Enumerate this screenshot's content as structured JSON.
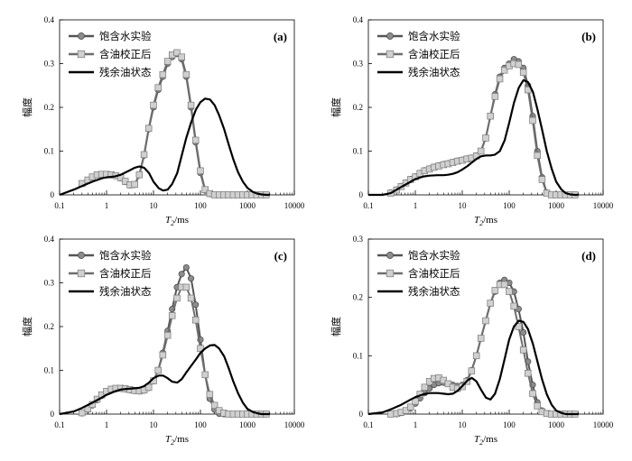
{
  "legend": {
    "sat": "饱含水实验",
    "corr": "含油校正后",
    "res": "残余油状态"
  },
  "axis": {
    "ylabel": "幅度",
    "xlabel_main": "T",
    "xlabel_sub": "2",
    "xlabel_unit": "/ms"
  },
  "colors": {
    "sat_line": "#555555",
    "sat_marker": "#8c8c8c",
    "corr_line": "#6e6e6e",
    "corr_marker": "#d0d0d0",
    "res_line": "#000000"
  },
  "chart_data": [
    {
      "panel": "(a)",
      "type": "line",
      "xscale": "log",
      "xlim": [
        0.1,
        10000
      ],
      "ylim": [
        0,
        0.4
      ],
      "yticks": [
        "0",
        "0.1",
        "0.2",
        "0.3",
        "0.4"
      ],
      "xticks": [
        "0.1",
        "1",
        "10",
        "100",
        "1000",
        "10000"
      ],
      "series": [
        {
          "name": "饱含水实验",
          "x": [
            0.3,
            0.4,
            0.5,
            0.63,
            0.79,
            1.0,
            1.26,
            1.58,
            2.0,
            2.5,
            3.16,
            3.98,
            5.0,
            6.3,
            7.9,
            10,
            12.6,
            15.8,
            20,
            25,
            31.6,
            39.8,
            50,
            63,
            79,
            100,
            126,
            158,
            200,
            251,
            316,
            398,
            501,
            631,
            794,
            1000,
            1259,
            1585,
            1995,
            2512
          ],
          "y": [
            0.025,
            0.033,
            0.04,
            0.045,
            0.046,
            0.046,
            0.045,
            0.043,
            0.038,
            0.03,
            0.022,
            0.023,
            0.045,
            0.09,
            0.15,
            0.2,
            0.24,
            0.27,
            0.3,
            0.315,
            0.322,
            0.31,
            0.27,
            0.2,
            0.12,
            0.05,
            0.01,
            0.002,
            0,
            0,
            0,
            0,
            0,
            0,
            0,
            0,
            0,
            0,
            0,
            0
          ]
        },
        {
          "name": "含油校正后",
          "x": [
            0.3,
            0.4,
            0.5,
            0.63,
            0.79,
            1.0,
            1.26,
            1.58,
            2.0,
            2.5,
            3.16,
            3.98,
            5.0,
            6.3,
            7.9,
            10,
            12.6,
            15.8,
            20,
            25,
            31.6,
            39.8,
            50,
            63,
            79,
            100,
            126,
            158,
            200,
            251,
            316,
            398,
            501,
            631,
            794,
            1000,
            1259,
            1585,
            1995,
            2512
          ],
          "y": [
            0.026,
            0.034,
            0.041,
            0.046,
            0.047,
            0.047,
            0.046,
            0.044,
            0.039,
            0.031,
            0.023,
            0.024,
            0.046,
            0.092,
            0.152,
            0.205,
            0.245,
            0.275,
            0.305,
            0.32,
            0.325,
            0.315,
            0.275,
            0.205,
            0.125,
            0.055,
            0.012,
            0.003,
            0,
            0,
            0,
            0,
            0,
            0,
            0,
            0,
            0,
            0,
            0,
            0
          ]
        },
        {
          "name": "残余油状态",
          "x": [
            0.1,
            0.2,
            0.3,
            0.5,
            0.8,
            1.0,
            1.5,
            2,
            3,
            4,
            5,
            6.3,
            8,
            10,
            13,
            16,
            20,
            25,
            32,
            40,
            50,
            63,
            80,
            100,
            126,
            160,
            200,
            250,
            320,
            400,
            500,
            630,
            800,
            1000,
            1300,
            1600,
            2000,
            2500,
            3000
          ],
          "y": [
            0,
            0.012,
            0.02,
            0.03,
            0.038,
            0.04,
            0.042,
            0.046,
            0.055,
            0.062,
            0.065,
            0.062,
            0.05,
            0.03,
            0.015,
            0.01,
            0.012,
            0.025,
            0.05,
            0.09,
            0.13,
            0.165,
            0.195,
            0.212,
            0.22,
            0.218,
            0.205,
            0.182,
            0.15,
            0.115,
            0.082,
            0.052,
            0.03,
            0.016,
            0.007,
            0.003,
            0.001,
            0,
            0
          ]
        }
      ]
    },
    {
      "panel": "(b)",
      "type": "line",
      "xscale": "log",
      "xlim": [
        0.1,
        10000
      ],
      "ylim": [
        0,
        0.4
      ],
      "yticks": [
        "0",
        "0.1",
        "0.2",
        "0.3",
        "0.4"
      ],
      "xticks": [
        "0.1",
        "1",
        "10",
        "100",
        "1000",
        "10000"
      ],
      "series": [
        {
          "name": "饱含水实验",
          "x": [
            0.3,
            0.4,
            0.5,
            0.63,
            0.79,
            1.0,
            1.26,
            1.58,
            2.0,
            2.5,
            3.16,
            3.98,
            5.0,
            6.3,
            7.9,
            10,
            12.6,
            15.8,
            20,
            25,
            31.6,
            39.8,
            50,
            63,
            79,
            100,
            126,
            158,
            200,
            251,
            316,
            398,
            501,
            631,
            794,
            1000,
            1259,
            1585,
            1995,
            2512
          ],
          "y": [
            0.005,
            0.012,
            0.02,
            0.028,
            0.036,
            0.042,
            0.05,
            0.056,
            0.06,
            0.064,
            0.067,
            0.07,
            0.072,
            0.075,
            0.078,
            0.08,
            0.083,
            0.085,
            0.09,
            0.1,
            0.13,
            0.18,
            0.23,
            0.27,
            0.29,
            0.3,
            0.31,
            0.305,
            0.29,
            0.25,
            0.18,
            0.1,
            0.04,
            0.005,
            0,
            0,
            0,
            0,
            0,
            0
          ]
        },
        {
          "name": "含油校正后",
          "x": [
            0.3,
            0.4,
            0.5,
            0.63,
            0.79,
            1.0,
            1.26,
            1.58,
            2.0,
            2.5,
            3.16,
            3.98,
            5.0,
            6.3,
            7.9,
            10,
            12.6,
            15.8,
            20,
            25,
            31.6,
            39.8,
            50,
            63,
            79,
            100,
            126,
            158,
            200,
            251,
            316,
            398,
            501,
            631,
            794,
            1000,
            1259,
            1585,
            1995,
            2512
          ],
          "y": [
            0.004,
            0.011,
            0.019,
            0.027,
            0.035,
            0.041,
            0.049,
            0.055,
            0.059,
            0.063,
            0.066,
            0.069,
            0.071,
            0.074,
            0.077,
            0.079,
            0.082,
            0.084,
            0.089,
            0.1,
            0.13,
            0.18,
            0.225,
            0.265,
            0.285,
            0.295,
            0.3,
            0.298,
            0.28,
            0.24,
            0.17,
            0.09,
            0.035,
            0.004,
            0,
            0,
            0,
            0,
            0,
            0
          ]
        },
        {
          "name": "残余油状态",
          "x": [
            0.1,
            0.2,
            0.3,
            0.5,
            0.8,
            1.0,
            1.5,
            2,
            3,
            4,
            5,
            6.3,
            8,
            10,
            13,
            16,
            20,
            25,
            32,
            40,
            50,
            63,
            80,
            100,
            126,
            160,
            200,
            250,
            320,
            400,
            500,
            630,
            800,
            1000,
            1300,
            1600,
            2000,
            2500,
            3000
          ],
          "y": [
            0,
            0,
            0.004,
            0.018,
            0.03,
            0.036,
            0.042,
            0.044,
            0.045,
            0.045,
            0.046,
            0.048,
            0.052,
            0.058,
            0.066,
            0.074,
            0.082,
            0.088,
            0.09,
            0.09,
            0.092,
            0.1,
            0.125,
            0.165,
            0.21,
            0.245,
            0.262,
            0.258,
            0.235,
            0.195,
            0.15,
            0.1,
            0.06,
            0.03,
            0.012,
            0.004,
            0.001,
            0,
            0
          ]
        }
      ]
    },
    {
      "panel": "(c)",
      "type": "line",
      "xscale": "log",
      "xlim": [
        0.1,
        10000
      ],
      "ylim": [
        0,
        0.4
      ],
      "yticks": [
        "0",
        "0.1",
        "0.2",
        "0.3",
        "0.4"
      ],
      "xticks": [
        "0.1",
        "1",
        "10",
        "100",
        "1000",
        "10000"
      ],
      "series": [
        {
          "name": "饱含水实验",
          "x": [
            0.3,
            0.4,
            0.5,
            0.63,
            0.79,
            1.0,
            1.26,
            1.58,
            2.0,
            2.5,
            3.16,
            3.98,
            5.0,
            6.3,
            7.9,
            10,
            12.6,
            15.8,
            20,
            25,
            31.6,
            39.8,
            50,
            63,
            79,
            100,
            126,
            158,
            200,
            251,
            316,
            398,
            501,
            631,
            794,
            1000,
            1259,
            1585,
            1995,
            2512
          ],
          "y": [
            0.002,
            0.01,
            0.02,
            0.032,
            0.042,
            0.05,
            0.055,
            0.057,
            0.058,
            0.057,
            0.055,
            0.053,
            0.052,
            0.054,
            0.06,
            0.075,
            0.1,
            0.14,
            0.19,
            0.24,
            0.29,
            0.32,
            0.335,
            0.31,
            0.25,
            0.17,
            0.09,
            0.035,
            0.01,
            0.001,
            0,
            0,
            0,
            0,
            0,
            0,
            0,
            0,
            0,
            0
          ]
        },
        {
          "name": "含油校正后",
          "x": [
            0.3,
            0.4,
            0.5,
            0.63,
            0.79,
            1.0,
            1.26,
            1.58,
            2.0,
            2.5,
            3.16,
            3.98,
            5.0,
            6.3,
            7.9,
            10,
            12.6,
            15.8,
            20,
            25,
            31.6,
            39.8,
            50,
            63,
            79,
            100,
            126,
            158,
            200,
            251,
            316,
            398,
            501,
            631,
            794,
            1000,
            1259,
            1585,
            1995,
            2512
          ],
          "y": [
            0.003,
            0.012,
            0.022,
            0.034,
            0.044,
            0.052,
            0.057,
            0.059,
            0.059,
            0.058,
            0.056,
            0.054,
            0.053,
            0.055,
            0.061,
            0.076,
            0.1,
            0.135,
            0.18,
            0.225,
            0.265,
            0.29,
            0.29,
            0.265,
            0.215,
            0.15,
            0.09,
            0.045,
            0.02,
            0.008,
            0.002,
            0,
            0,
            0,
            0,
            0,
            0,
            0,
            0,
            0
          ]
        },
        {
          "name": "残余油状态",
          "x": [
            0.1,
            0.2,
            0.3,
            0.5,
            0.8,
            1.0,
            1.5,
            2,
            3,
            4,
            5,
            6.3,
            8,
            10,
            13,
            16,
            20,
            25,
            32,
            40,
            50,
            63,
            80,
            100,
            126,
            160,
            200,
            250,
            320,
            400,
            500,
            630,
            800,
            1000,
            1300,
            1600,
            2000,
            2500,
            3000
          ],
          "y": [
            0,
            0.006,
            0.014,
            0.026,
            0.038,
            0.044,
            0.052,
            0.056,
            0.058,
            0.059,
            0.06,
            0.064,
            0.072,
            0.082,
            0.088,
            0.088,
            0.082,
            0.074,
            0.072,
            0.08,
            0.095,
            0.11,
            0.125,
            0.14,
            0.15,
            0.157,
            0.158,
            0.15,
            0.132,
            0.105,
            0.075,
            0.048,
            0.026,
            0.012,
            0.005,
            0.002,
            0,
            0,
            0
          ]
        }
      ]
    },
    {
      "panel": "(d)",
      "type": "line",
      "xscale": "log",
      "xlim": [
        0.1,
        10000
      ],
      "ylim": [
        0,
        0.3
      ],
      "yticks": [
        "0",
        "0.1",
        "0.2",
        "0.3"
      ],
      "xticks": [
        "0.1",
        "1",
        "10",
        "100",
        "1000",
        "10000"
      ],
      "series": [
        {
          "name": "饱含水实验",
          "x": [
            0.3,
            0.4,
            0.5,
            0.63,
            0.79,
            1.0,
            1.26,
            1.58,
            2.0,
            2.5,
            3.16,
            3.98,
            5.0,
            6.3,
            7.9,
            10,
            12.6,
            15.8,
            20,
            25,
            31.6,
            39.8,
            50,
            63,
            79,
            100,
            126,
            158,
            200,
            251,
            316,
            398,
            501,
            631,
            794,
            1000,
            1259,
            1585,
            1995,
            2512
          ],
          "y": [
            0,
            0,
            0.002,
            0.005,
            0.01,
            0.018,
            0.027,
            0.036,
            0.044,
            0.05,
            0.053,
            0.054,
            0.052,
            0.05,
            0.048,
            0.05,
            0.058,
            0.075,
            0.1,
            0.13,
            0.16,
            0.19,
            0.21,
            0.225,
            0.23,
            0.225,
            0.21,
            0.18,
            0.14,
            0.09,
            0.05,
            0.02,
            0.006,
            0.001,
            0,
            0,
            0,
            0,
            0,
            0
          ]
        },
        {
          "name": "含油校正后",
          "x": [
            0.3,
            0.4,
            0.5,
            0.63,
            0.79,
            1.0,
            1.26,
            1.58,
            2.0,
            2.5,
            3.16,
            3.98,
            5.0,
            6.3,
            7.9,
            10,
            12.6,
            15.8,
            20,
            25,
            31.6,
            39.8,
            50,
            63,
            79,
            100,
            126,
            158,
            200,
            251,
            316,
            398,
            501,
            631,
            794,
            1000,
            1259,
            1585,
            1995,
            2512
          ],
          "y": [
            0,
            0.001,
            0.003,
            0.006,
            0.012,
            0.022,
            0.034,
            0.046,
            0.056,
            0.061,
            0.062,
            0.058,
            0.052,
            0.046,
            0.044,
            0.047,
            0.056,
            0.074,
            0.1,
            0.13,
            0.16,
            0.19,
            0.212,
            0.222,
            0.222,
            0.21,
            0.185,
            0.15,
            0.11,
            0.07,
            0.035,
            0.014,
            0.004,
            0.001,
            0,
            0,
            0,
            0,
            0,
            0
          ]
        },
        {
          "name": "残余油状态",
          "x": [
            0.1,
            0.2,
            0.3,
            0.5,
            0.8,
            1.0,
            1.5,
            2,
            3,
            4,
            5,
            6.3,
            8,
            10,
            13,
            16,
            20,
            25,
            32,
            40,
            50,
            63,
            80,
            100,
            126,
            160,
            200,
            250,
            320,
            400,
            500,
            630,
            800,
            1000,
            1300,
            1600,
            2000,
            2500,
            3000
          ],
          "y": [
            0,
            0.003,
            0.008,
            0.016,
            0.025,
            0.029,
            0.034,
            0.036,
            0.036,
            0.035,
            0.034,
            0.035,
            0.04,
            0.048,
            0.058,
            0.062,
            0.056,
            0.042,
            0.028,
            0.025,
            0.035,
            0.06,
            0.095,
            0.128,
            0.15,
            0.16,
            0.158,
            0.146,
            0.12,
            0.09,
            0.06,
            0.034,
            0.016,
            0.006,
            0.002,
            0,
            0,
            0,
            0
          ]
        }
      ]
    }
  ]
}
